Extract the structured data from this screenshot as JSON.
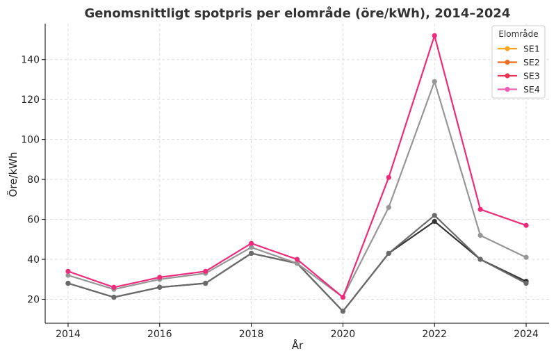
{
  "chart_data": {
    "type": "line",
    "title": "Genomsnittligt spotpris per elområde (öre/kWh), 2014–2024",
    "xlabel": "År",
    "ylabel": "Öre/kWh",
    "x": [
      2014,
      2015,
      2016,
      2017,
      2018,
      2019,
      2020,
      2021,
      2022,
      2023,
      2024
    ],
    "xlim": [
      2013.5,
      2024.5
    ],
    "ylim": [
      8,
      158
    ],
    "x_ticks": [
      2014,
      2016,
      2018,
      2020,
      2022,
      2024
    ],
    "y_ticks": [
      20,
      40,
      60,
      80,
      100,
      120,
      140
    ],
    "grid": true,
    "legend": {
      "title": "Elområde",
      "placement": "top-right",
      "entries": [
        {
          "name": "SE1",
          "color": "#f5a623"
        },
        {
          "name": "SE2",
          "color": "#f26d21"
        },
        {
          "name": "SE3",
          "color": "#e83456"
        },
        {
          "name": "SE4",
          "color": "#ee5fb5"
        }
      ]
    },
    "series": [
      {
        "name": "SE1",
        "color": "#333333",
        "values": [
          28,
          21,
          26,
          28,
          43,
          38,
          14,
          43,
          59,
          40,
          29
        ]
      },
      {
        "name": "SE2",
        "color": "#6a6a6a",
        "values": [
          28,
          21,
          26,
          28,
          43,
          38,
          14,
          43,
          62,
          40,
          28
        ]
      },
      {
        "name": "SE3",
        "color": "#969696",
        "values": [
          32,
          25,
          30,
          33,
          46,
          38,
          21,
          66,
          129,
          52,
          41
        ]
      },
      {
        "name": "SE4",
        "color": "#ee2a7b",
        "values": [
          34,
          26,
          31,
          34,
          48,
          40,
          21,
          81,
          152,
          65,
          57
        ]
      }
    ]
  }
}
